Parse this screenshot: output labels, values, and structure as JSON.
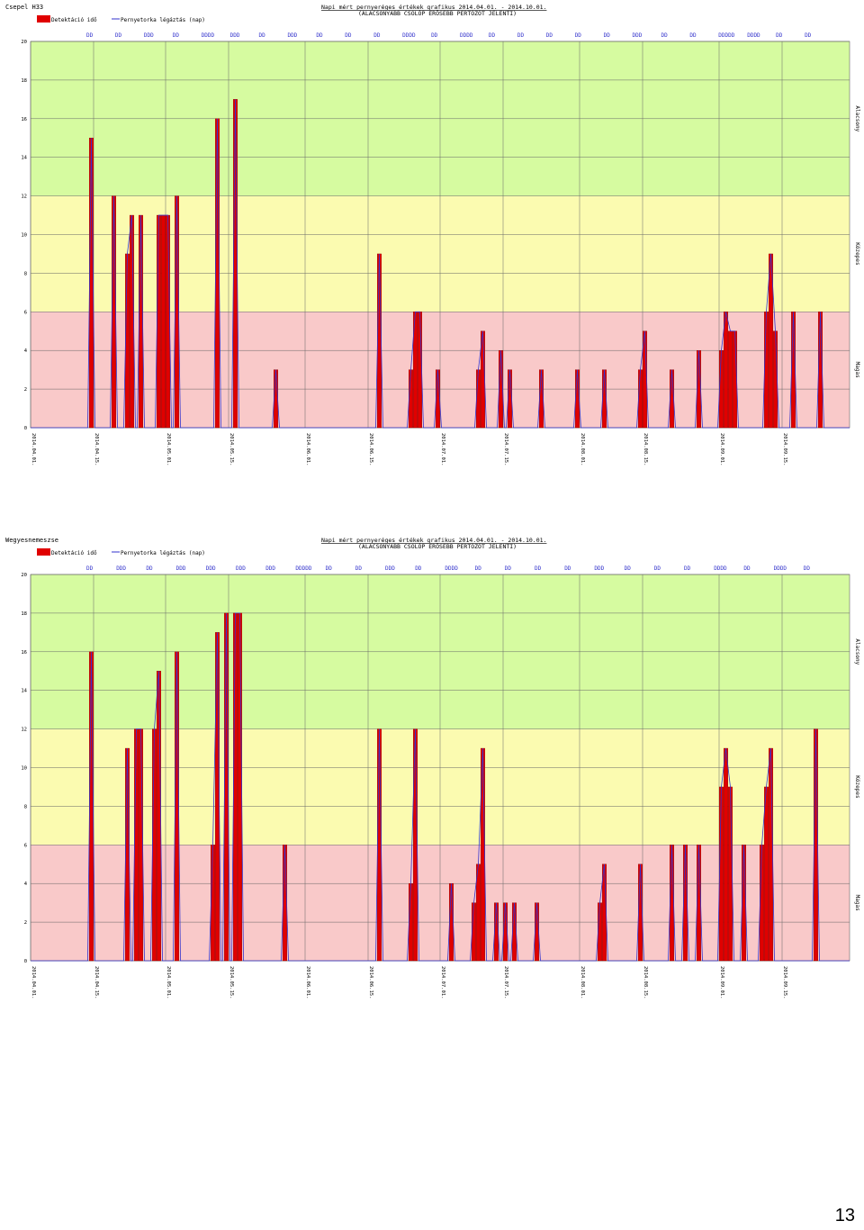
{
  "page_number": "13",
  "colors": {
    "bar": "#e00000",
    "bar_edge": "#8a0000",
    "line": "#3333cc",
    "zone_red": "#f9c9c9",
    "zone_yellow": "#fbfbb0",
    "zone_green": "#d6fba0",
    "grid": "#666666",
    "marker": "#3333cc"
  },
  "chart_data": [
    {
      "type": "bar",
      "station": "Csepel H33",
      "title_line1": "Napi mért pernyeréges értékek grafikus 2014.04.01. - 2014.10.01.",
      "title_line2": "(ALACSONYABB CSOLÓP ERŐSEBB PERTÖZÖT JELENTI)",
      "legend": [
        "Detektáció idő",
        "Pernyetorka légáztás (nap)"
      ],
      "ylim": [
        0,
        20
      ],
      "yticks": [
        "0",
        "2",
        "4",
        "6",
        "8",
        "10",
        "12",
        "14",
        "16",
        "18",
        "20"
      ],
      "zones": [
        {
          "from": 0,
          "to": 6,
          "label": "Magas"
        },
        {
          "from": 6,
          "to": 12,
          "label": "Közepes"
        },
        {
          "from": 12,
          "to": 20,
          "label": "Alacsony"
        }
      ],
      "xlim": [
        0,
        182
      ],
      "x_ticks": [
        {
          "x": 0,
          "label": "2014.04.01."
        },
        {
          "x": 14,
          "label": "2014.04.15."
        },
        {
          "x": 30,
          "label": "2014.05.01."
        },
        {
          "x": 44,
          "label": "2014.05.15."
        },
        {
          "x": 61,
          "label": "2014.06.01."
        },
        {
          "x": 75,
          "label": "2014.06.15."
        },
        {
          "x": 91,
          "label": "2014.07.01."
        },
        {
          "x": 105,
          "label": "2014.07.15."
        },
        {
          "x": 122,
          "label": "2014.08.01."
        },
        {
          "x": 136,
          "label": "2014.08.15."
        },
        {
          "x": 153,
          "label": "2014.09.01."
        },
        {
          "x": 167,
          "label": "2014.09.15."
        }
      ],
      "markers": [
        "DD",
        "DD",
        "DDD",
        "DD",
        "DDDD",
        "DDD",
        "DD",
        "DDD",
        "DD",
        "DD",
        "DD",
        "DDDD",
        "DD",
        "DDDD",
        "DD",
        "DD",
        "DD",
        "DD",
        "DD",
        "DDD",
        "DD",
        "DD",
        "DDDDD",
        "DDDD",
        "DD",
        "DD"
      ],
      "points": [
        [
          13,
          15
        ],
        [
          18,
          12
        ],
        [
          21,
          9
        ],
        [
          22,
          11
        ],
        [
          24,
          11
        ],
        [
          28,
          11
        ],
        [
          29,
          11
        ],
        [
          30,
          11
        ],
        [
          32,
          12
        ],
        [
          41,
          16
        ],
        [
          45,
          17
        ],
        [
          54,
          3
        ],
        [
          77,
          9
        ],
        [
          84,
          3
        ],
        [
          85,
          6
        ],
        [
          86,
          6
        ],
        [
          90,
          3
        ],
        [
          99,
          3
        ],
        [
          100,
          5
        ],
        [
          104,
          4
        ],
        [
          106,
          3
        ],
        [
          113,
          3
        ],
        [
          121,
          3
        ],
        [
          127,
          3
        ],
        [
          135,
          3
        ],
        [
          136,
          5
        ],
        [
          142,
          3
        ],
        [
          148,
          4
        ],
        [
          153,
          4
        ],
        [
          154,
          6
        ],
        [
          155,
          5
        ],
        [
          156,
          5
        ],
        [
          163,
          6
        ],
        [
          164,
          9
        ],
        [
          165,
          5
        ],
        [
          169,
          6
        ],
        [
          175,
          6
        ]
      ]
    },
    {
      "type": "bar",
      "station": "Wegyesnemeszse",
      "title_line1": "Napi mért pernyeréges értékek grafikus 2014.04.01. - 2014.10.01.",
      "title_line2": "(ALACSONYABB CSOLÓP ERŐSEBB PERTÖZÖT JELENTI)",
      "legend": [
        "Detektáció idő",
        "Pernyetorka légáztás (nap)"
      ],
      "ylim": [
        0,
        20
      ],
      "yticks": [
        "0",
        "2",
        "4",
        "6",
        "8",
        "10",
        "12",
        "14",
        "16",
        "18",
        "20"
      ],
      "zones": [
        {
          "from": 0,
          "to": 6,
          "label": "Magas"
        },
        {
          "from": 6,
          "to": 12,
          "label": "Közepes"
        },
        {
          "from": 12,
          "to": 20,
          "label": "Alacsony"
        }
      ],
      "xlim": [
        0,
        182
      ],
      "x_ticks": [
        {
          "x": 0,
          "label": "2014.04.01."
        },
        {
          "x": 14,
          "label": "2014.04.15."
        },
        {
          "x": 30,
          "label": "2014.05.01."
        },
        {
          "x": 44,
          "label": "2014.05.15."
        },
        {
          "x": 61,
          "label": "2014.06.01."
        },
        {
          "x": 75,
          "label": "2014.06.15."
        },
        {
          "x": 91,
          "label": "2014.07.01."
        },
        {
          "x": 105,
          "label": "2014.07.15."
        },
        {
          "x": 122,
          "label": "2014.08.01."
        },
        {
          "x": 136,
          "label": "2014.08.15."
        },
        {
          "x": 153,
          "label": "2014.09.01."
        },
        {
          "x": 167,
          "label": "2014.09.15."
        }
      ],
      "markers": [
        "DD",
        "DDD",
        "DD",
        "DDD",
        "DDD",
        "DDD",
        "DDD",
        "DDDDD",
        "DD",
        "DD",
        "DDD",
        "DD",
        "DDDD",
        "DD",
        "DD",
        "DD",
        "DD",
        "DDD",
        "DD",
        "DD",
        "DD",
        "DDDD",
        "DD",
        "DDDD",
        "DD"
      ],
      "points": [
        [
          13,
          16
        ],
        [
          21,
          11
        ],
        [
          23,
          12
        ],
        [
          24,
          12
        ],
        [
          27,
          12
        ],
        [
          28,
          15
        ],
        [
          32,
          16
        ],
        [
          40,
          6
        ],
        [
          41,
          17
        ],
        [
          43,
          18
        ],
        [
          45,
          18
        ],
        [
          46,
          18
        ],
        [
          56,
          6
        ],
        [
          77,
          12
        ],
        [
          84,
          4
        ],
        [
          85,
          12
        ],
        [
          93,
          4
        ],
        [
          98,
          3
        ],
        [
          99,
          5
        ],
        [
          100,
          11
        ],
        [
          103,
          3
        ],
        [
          105,
          3
        ],
        [
          107,
          3
        ],
        [
          112,
          3
        ],
        [
          126,
          3
        ],
        [
          127,
          5
        ],
        [
          135,
          5
        ],
        [
          142,
          6
        ],
        [
          145,
          6
        ],
        [
          148,
          6
        ],
        [
          153,
          9
        ],
        [
          154,
          11
        ],
        [
          155,
          9
        ],
        [
          158,
          6
        ],
        [
          162,
          6
        ],
        [
          163,
          9
        ],
        [
          164,
          11
        ],
        [
          174,
          12
        ]
      ]
    }
  ]
}
